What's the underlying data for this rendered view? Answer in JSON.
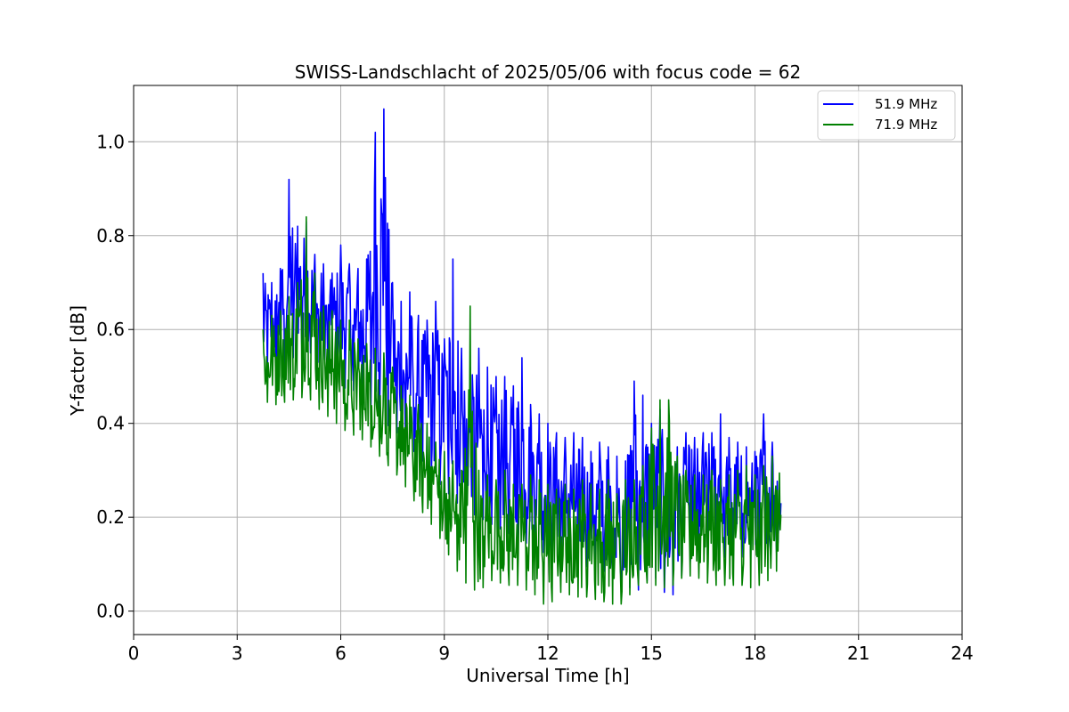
{
  "chart_data": {
    "type": "line",
    "title": "SWISS-Landschlacht of 2025/05/06 with focus code = 62",
    "xlabel": "Universal Time [h]",
    "ylabel": "Y-factor [dB]",
    "xlim": [
      0,
      24
    ],
    "ylim": [
      -0.05,
      1.12
    ],
    "xticks": [
      0,
      3,
      6,
      9,
      12,
      15,
      18,
      21,
      24
    ],
    "xtick_labels": [
      "0",
      "3",
      "6",
      "9",
      "12",
      "15",
      "18",
      "21",
      "24"
    ],
    "yticks": [
      0.0,
      0.2,
      0.4,
      0.6,
      0.8,
      1.0
    ],
    "ytick_labels": [
      "0.0",
      "0.2",
      "0.4",
      "0.6",
      "0.8",
      "1.0"
    ],
    "grid": true,
    "legend_position": "top-right",
    "series": [
      {
        "name": "51.9 MHz",
        "color": "#0000ff",
        "x": [
          3.75,
          4.0,
          4.25,
          4.5,
          4.75,
          5.0,
          5.25,
          5.5,
          5.75,
          6.0,
          6.25,
          6.5,
          6.75,
          7.0,
          7.25,
          7.5,
          7.75,
          8.0,
          8.25,
          8.5,
          8.75,
          9.0,
          9.25,
          9.5,
          9.75,
          10.0,
          10.25,
          10.5,
          10.75,
          11.0,
          11.25,
          11.5,
          11.75,
          12.0,
          12.25,
          12.5,
          12.75,
          13.0,
          13.25,
          13.5,
          13.75,
          14.0,
          14.25,
          14.5,
          14.75,
          15.0,
          15.25,
          15.5,
          15.75,
          16.0,
          16.25,
          16.5,
          16.75,
          17.0,
          17.25,
          17.5,
          17.75,
          18.0,
          18.25,
          18.5,
          18.75
        ],
        "low": [
          0.5,
          0.52,
          0.5,
          0.53,
          0.55,
          0.56,
          0.54,
          0.52,
          0.5,
          0.48,
          0.47,
          0.47,
          0.44,
          0.42,
          0.4,
          0.39,
          0.37,
          0.35,
          0.33,
          0.31,
          0.28,
          0.26,
          0.24,
          0.22,
          0.21,
          0.2,
          0.19,
          0.18,
          0.17,
          0.16,
          0.15,
          0.14,
          0.13,
          0.12,
          0.12,
          0.11,
          0.1,
          0.1,
          0.09,
          0.09,
          0.08,
          0.07,
          0.06,
          0.04,
          0.05,
          0.08,
          0.06,
          0.02,
          0.05,
          0.1,
          0.11,
          0.12,
          0.12,
          0.11,
          0.12,
          0.12,
          0.11,
          0.12,
          0.12,
          0.13,
          0.12
        ],
        "high": [
          0.72,
          0.7,
          0.73,
          0.92,
          0.82,
          0.83,
          0.76,
          0.74,
          0.72,
          0.78,
          0.74,
          0.73,
          0.75,
          1.02,
          1.07,
          0.7,
          0.66,
          0.68,
          0.63,
          0.62,
          0.66,
          0.58,
          0.75,
          0.56,
          0.52,
          0.56,
          0.52,
          0.5,
          0.5,
          0.48,
          0.54,
          0.44,
          0.42,
          0.4,
          0.38,
          0.37,
          0.38,
          0.37,
          0.34,
          0.36,
          0.35,
          0.33,
          0.32,
          0.49,
          0.46,
          0.4,
          0.43,
          0.37,
          0.35,
          0.38,
          0.37,
          0.38,
          0.38,
          0.42,
          0.37,
          0.36,
          0.35,
          0.34,
          0.42,
          0.36,
          0.34
        ]
      },
      {
        "name": "71.9 MHz",
        "color": "#008000",
        "x": [
          3.75,
          4.0,
          4.25,
          4.5,
          4.75,
          5.0,
          5.25,
          5.5,
          5.75,
          6.0,
          6.25,
          6.5,
          6.75,
          7.0,
          7.25,
          7.5,
          7.75,
          8.0,
          8.25,
          8.5,
          8.75,
          9.0,
          9.25,
          9.5,
          9.75,
          10.0,
          10.25,
          10.5,
          10.75,
          11.0,
          11.25,
          11.5,
          11.75,
          12.0,
          12.25,
          12.5,
          12.75,
          13.0,
          13.25,
          13.5,
          13.75,
          14.0,
          14.25,
          14.5,
          14.75,
          15.0,
          15.25,
          15.5,
          15.75,
          16.0,
          16.25,
          16.5,
          16.75,
          17.0,
          17.25,
          17.5,
          17.75,
          18.0,
          18.25,
          18.5,
          18.75
        ],
        "low": [
          0.45,
          0.44,
          0.44,
          0.45,
          0.45,
          0.46,
          0.44,
          0.42,
          0.41,
          0.39,
          0.38,
          0.37,
          0.36,
          0.34,
          0.32,
          0.3,
          0.28,
          0.25,
          0.22,
          0.2,
          0.17,
          0.14,
          0.1,
          0.07,
          0.05,
          0.04,
          0.06,
          0.07,
          0.05,
          0.06,
          0.05,
          0.04,
          0.03,
          0.0,
          0.04,
          0.04,
          0.03,
          0.03,
          0.03,
          0.02,
          0.02,
          0.01,
          0.02,
          0.05,
          0.06,
          0.06,
          0.05,
          0.05,
          0.06,
          0.08,
          0.07,
          0.07,
          0.05,
          0.06,
          0.05,
          0.06,
          0.05,
          0.05,
          0.06,
          0.07,
          0.1
        ],
        "high": [
          0.6,
          0.63,
          0.64,
          0.67,
          0.7,
          0.84,
          0.72,
          0.65,
          0.64,
          0.62,
          0.62,
          0.58,
          0.57,
          0.56,
          0.55,
          0.52,
          0.48,
          0.46,
          0.44,
          0.4,
          0.36,
          0.34,
          0.32,
          0.3,
          0.65,
          0.3,
          0.29,
          0.28,
          0.3,
          0.27,
          0.27,
          0.29,
          0.28,
          0.27,
          0.26,
          0.27,
          0.26,
          0.28,
          0.27,
          0.26,
          0.28,
          0.25,
          0.28,
          0.28,
          0.31,
          0.39,
          0.45,
          0.45,
          0.33,
          0.3,
          0.29,
          0.29,
          0.3,
          0.28,
          0.29,
          0.3,
          0.31,
          0.29,
          0.31,
          0.33,
          0.31
        ]
      }
    ]
  }
}
